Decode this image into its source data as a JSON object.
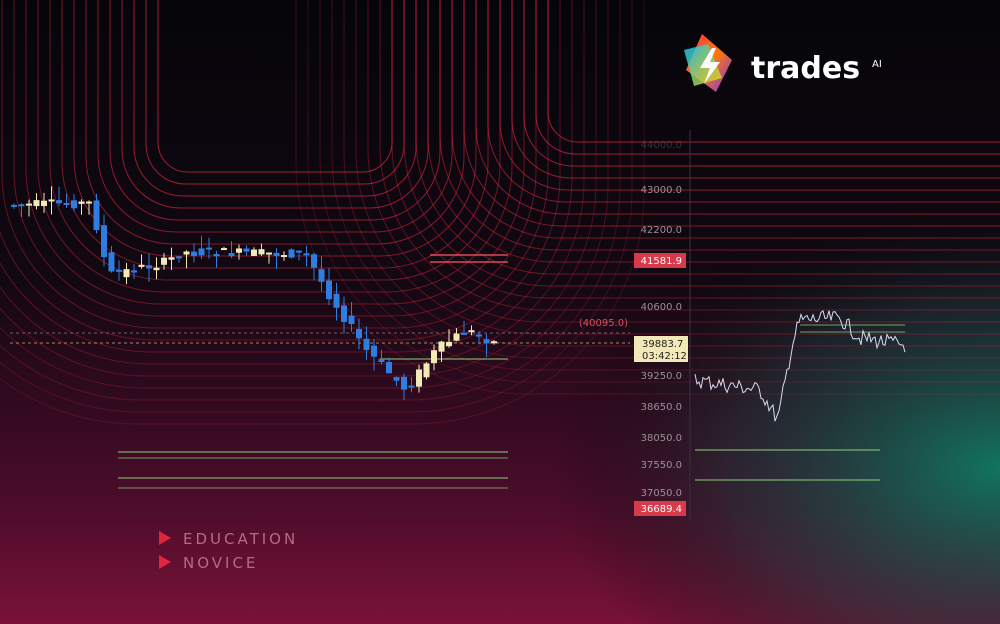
{
  "logo": {
    "name": "trades",
    "badge": "AI"
  },
  "tags": [
    "EDUCATION",
    "NOVICE"
  ],
  "price_axis": {
    "labels": [
      "43000.0",
      "42200.0",
      "40600.0",
      "39250.0",
      "38650.0",
      "38050.0",
      "37550.0",
      "37050.0"
    ],
    "high_label": "41581.9",
    "low_label": "36689.4",
    "current_price": "39883.7",
    "countdown": "03:42:12",
    "reference": "(40095.0)"
  }
}
